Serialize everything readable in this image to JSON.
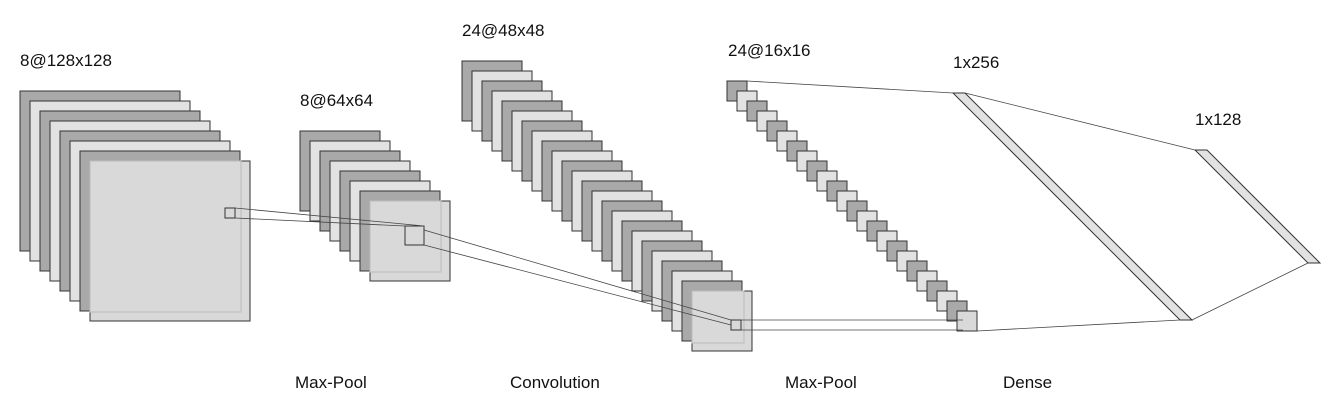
{
  "colors": {
    "dark": "#a9a9a9",
    "light": "#e2e2e2",
    "front": "#d9d9d9",
    "stroke": "#333333"
  },
  "blocks": [
    {
      "label": "8@128x128"
    },
    {
      "label": "8@64x64"
    },
    {
      "label": "24@48x48"
    },
    {
      "label": "24@16x16"
    },
    {
      "label": "1x256"
    },
    {
      "label": "1x128"
    }
  ],
  "operations": [
    {
      "label": "Max-Pool"
    },
    {
      "label": "Convolution"
    },
    {
      "label": "Max-Pool"
    },
    {
      "label": "Dense"
    }
  ]
}
